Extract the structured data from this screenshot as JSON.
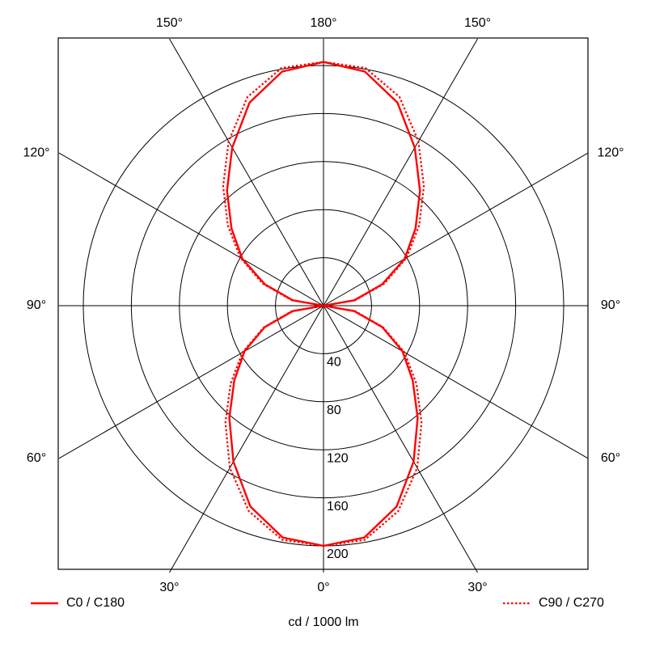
{
  "chart_data": {
    "type": "polar",
    "x_label": "cd / 1000 lm",
    "angle_ticks": [
      {
        "value": 0,
        "label": "0°"
      },
      {
        "value": 30,
        "label": "30°"
      },
      {
        "value": 60,
        "label": "60°"
      },
      {
        "value": 90,
        "label": "90°"
      },
      {
        "value": 120,
        "label": "120°"
      },
      {
        "value": 150,
        "label": "150°"
      },
      {
        "value": 180,
        "label": "180°"
      }
    ],
    "rlim": [
      0,
      200
    ],
    "rticks": [
      40,
      80,
      120,
      160,
      200
    ],
    "x": [
      0,
      10,
      20,
      30,
      40,
      50,
      60,
      70,
      80,
      90,
      100,
      110,
      120,
      130,
      140,
      150,
      160,
      170,
      180
    ],
    "series": [
      {
        "name": "C0 / C180",
        "color": "#ff0000",
        "dash": false,
        "values": [
          200,
          196,
          178,
          150,
          122,
          97,
          76,
          52,
          26,
          0,
          26,
          52,
          78,
          100,
          125,
          152,
          180,
          198,
          203
        ]
      },
      {
        "name": "C90 / C270",
        "color": "#ff0000",
        "dash": true,
        "values": [
          200,
          198,
          182,
          156,
          127,
          101,
          78,
          53,
          27,
          0,
          27,
          54,
          80,
          104,
          130,
          158,
          185,
          201,
          203
        ]
      }
    ]
  }
}
